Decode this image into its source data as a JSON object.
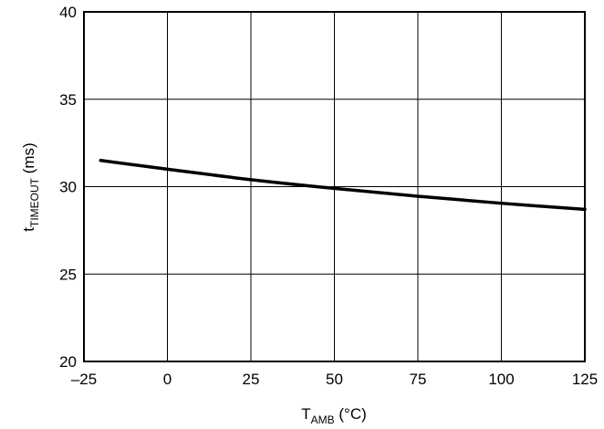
{
  "chart_data": {
    "type": "line",
    "title": "",
    "xlabel": {
      "main": "T",
      "sub": "AMB",
      "unit": " (°C)"
    },
    "ylabel": {
      "main": "t",
      "sub": "TIMEOUT",
      "unit": " (ms)"
    },
    "xlim": [
      -25,
      125
    ],
    "ylim": [
      20,
      40
    ],
    "xticks": [
      -25,
      0,
      25,
      50,
      75,
      100,
      125
    ],
    "xtick_labels": [
      "–25",
      "0",
      "25",
      "50",
      "75",
      "100",
      "125"
    ],
    "yticks": [
      20,
      25,
      30,
      35,
      40
    ],
    "ytick_labels": [
      "20",
      "25",
      "30",
      "35",
      "40"
    ],
    "grid": true,
    "series": [
      {
        "x": [
          -20,
          0,
          25,
          50,
          75,
          100,
          125
        ],
        "y": [
          31.5,
          31.0,
          30.4,
          29.9,
          29.45,
          29.05,
          28.7
        ]
      }
    ]
  }
}
